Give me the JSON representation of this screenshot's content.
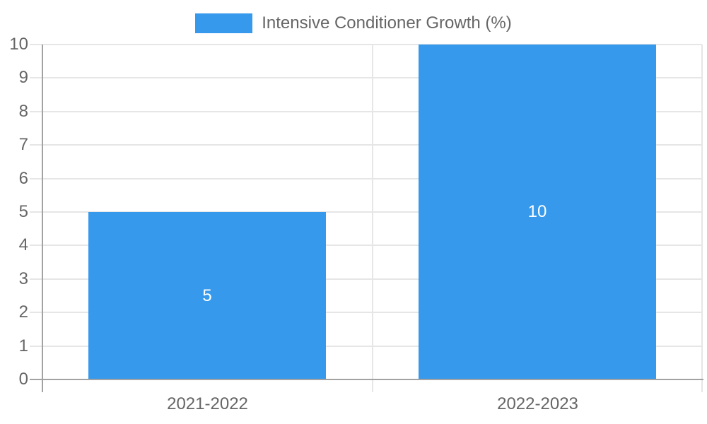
{
  "chart_data": {
    "type": "bar",
    "title": "",
    "legend_label": "Intensive Conditioner Growth (%)",
    "legend_position": "top",
    "categories": [
      "2021-2022",
      "2022-2023"
    ],
    "values": [
      5,
      10
    ],
    "bar_value_labels": [
      "5",
      "10"
    ],
    "xlabel": "",
    "ylabel": "",
    "ylim": [
      0,
      10
    ],
    "ytick_step": 1,
    "yticks": [
      0,
      1,
      2,
      3,
      4,
      5,
      6,
      7,
      8,
      9,
      10
    ],
    "grid": true
  },
  "colors": {
    "bar": "#3799EB",
    "gridline": "#e6e6e6",
    "axis": "#a2a2a2",
    "tick_label": "#666666",
    "legend_label": "#666666",
    "bar_value": "#ffffff",
    "background": "#ffffff"
  }
}
